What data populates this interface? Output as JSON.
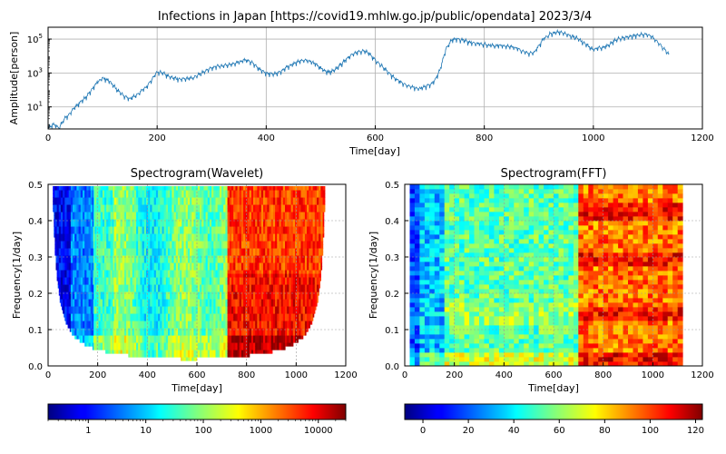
{
  "chart_data": [
    {
      "type": "line",
      "title": "Infections in Japan [https://covid19.mhlw.go.jp/public/opendata] 2023/3/4",
      "xlabel": "Time[day]",
      "ylabel": "Amplitude[person]",
      "yscale": "log",
      "xlim": [
        0,
        1200
      ],
      "ylim": [
        0.5,
        500000
      ],
      "xticks": [
        "0",
        "200",
        "400",
        "600",
        "800",
        "1000",
        "1200"
      ],
      "yticks": [
        {
          "base": "10",
          "exp": "1",
          "value": 10
        },
        {
          "base": "10",
          "exp": "3",
          "value": 1000
        },
        {
          "base": "10",
          "exp": "5",
          "value": 100000
        }
      ],
      "grid": true,
      "color": "#1f77b4",
      "series": [
        {
          "x": [
            0,
            10,
            20,
            30,
            40,
            50,
            60,
            70,
            80,
            90,
            100,
            110,
            120,
            130,
            140,
            150,
            160,
            170,
            180,
            190,
            200,
            210,
            220,
            230,
            240,
            250,
            260,
            270,
            280,
            290,
            300,
            310,
            320,
            330,
            340,
            350,
            360,
            370,
            380,
            390,
            400,
            410,
            420,
            430,
            440,
            450,
            460,
            470,
            480,
            490,
            500,
            510,
            520,
            530,
            540,
            550,
            560,
            570,
            580,
            590,
            600,
            610,
            620,
            630,
            640,
            650,
            660,
            670,
            680,
            690,
            700,
            710,
            720,
            730,
            740,
            750,
            760,
            770,
            780,
            790,
            800,
            810,
            820,
            830,
            840,
            850,
            860,
            870,
            880,
            890,
            900,
            910,
            920,
            930,
            940,
            950,
            960,
            970,
            980,
            990,
            1000,
            1010,
            1020,
            1030,
            1040,
            1050,
            1060,
            1070,
            1080,
            1090,
            1100,
            1110,
            1120,
            1130,
            1140
          ],
          "values": [
            0.6,
            1,
            0.6,
            2,
            4,
            10,
            20,
            40,
            100,
            300,
            500,
            400,
            180,
            80,
            40,
            30,
            45,
            80,
            150,
            400,
            1200,
            1000,
            700,
            500,
            450,
            450,
            500,
            600,
            900,
            1500,
            2000,
            2500,
            2700,
            3000,
            3500,
            4500,
            6000,
            5000,
            3000,
            1500,
            1000,
            900,
            1000,
            1500,
            2500,
            3500,
            5000,
            6000,
            5000,
            3500,
            2000,
            1200,
            1200,
            2000,
            4000,
            8000,
            14000,
            18000,
            20000,
            14000,
            6000,
            3000,
            1500,
            700,
            400,
            250,
            180,
            150,
            120,
            150,
            200,
            400,
            2000,
            30000,
            90000,
            100000,
            90000,
            70000,
            60000,
            55000,
            50000,
            45000,
            40000,
            45000,
            40000,
            35000,
            28000,
            20000,
            15000,
            15000,
            40000,
            120000,
            200000,
            250000,
            250000,
            200000,
            150000,
            120000,
            70000,
            40000,
            25000,
            30000,
            35000,
            50000,
            90000,
            110000,
            130000,
            150000,
            170000,
            200000,
            180000,
            120000,
            60000,
            25000,
            12000
          ]
        }
      ]
    },
    {
      "type": "heatmap",
      "title": "Spectrogram(Wavelet)",
      "xlabel": "Time[day]",
      "ylabel": "Frequency[1/day]",
      "xlim": [
        0,
        1200
      ],
      "ylim": [
        0.0,
        0.5
      ],
      "xticks": [
        "0",
        "200",
        "400",
        "600",
        "800",
        "1000",
        "1200"
      ],
      "yticks": [
        "0.0",
        "0.1",
        "0.2",
        "0.3",
        "0.4",
        "0.5"
      ],
      "grid": true,
      "colormap": "jet",
      "color_scale": "log",
      "colorbar_range": [
        0.2,
        30000
      ],
      "colorbar_ticks": [
        "1",
        "10",
        "100",
        "1000",
        "10000"
      ]
    },
    {
      "type": "heatmap",
      "title": "Spectrogram(FFT)",
      "xlabel": "Time[day]",
      "ylabel": "Frequency[1/day]",
      "xlim": [
        0,
        1200
      ],
      "ylim": [
        0.0,
        0.5
      ],
      "xticks": [
        "0",
        "200",
        "400",
        "600",
        "800",
        "1000",
        "1200"
      ],
      "yticks": [
        "0.0",
        "0.1",
        "0.2",
        "0.3",
        "0.4",
        "0.5"
      ],
      "grid": true,
      "colormap": "jet",
      "color_scale": "linear",
      "colorbar_range": [
        -8,
        123
      ],
      "colorbar_ticks": [
        "0",
        "20",
        "40",
        "60",
        "80",
        "100",
        "120"
      ]
    }
  ]
}
